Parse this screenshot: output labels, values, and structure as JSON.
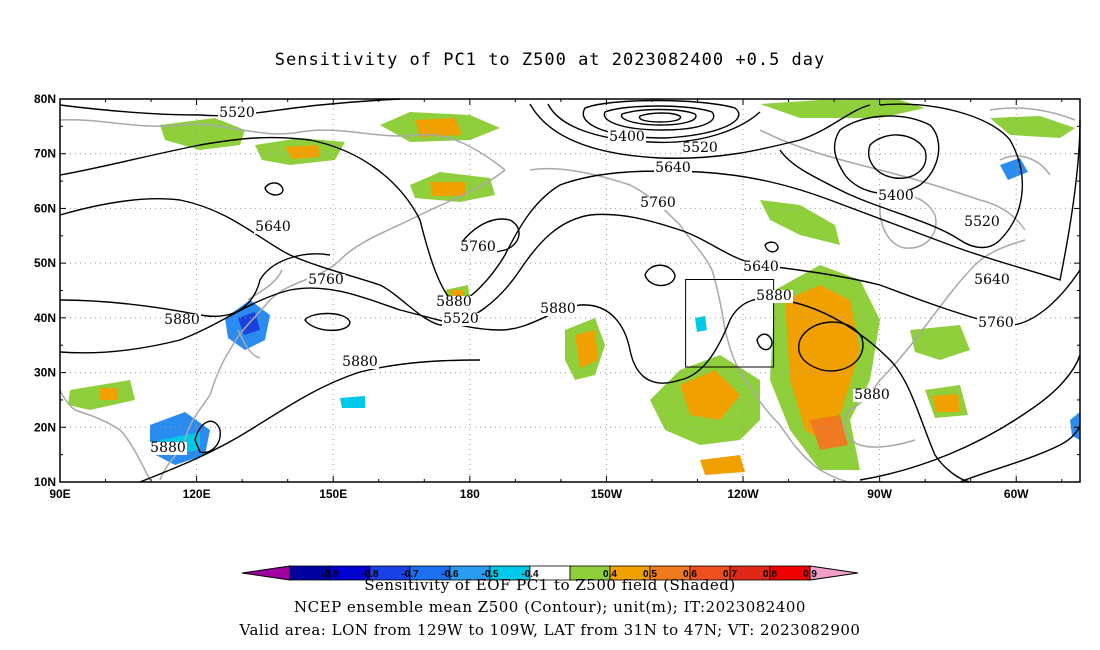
{
  "title": "Sensitivity of PC1 to Z500 at 2023082400 +0.5 day",
  "map": {
    "lon_ticks": [
      "90E",
      "120E",
      "150E",
      "180",
      "150W",
      "120W",
      "90W",
      "60W"
    ],
    "lat_ticks": [
      "10N",
      "20N",
      "30N",
      "40N",
      "50N",
      "60N",
      "70N",
      "80N"
    ],
    "extent": {
      "lon": [
        90,
        314
      ],
      "lat": [
        10,
        80
      ]
    },
    "grid": "dotted",
    "contour_labels": [
      "5520",
      "5400",
      "5520",
      "5640",
      "5760",
      "5400",
      "5520",
      "5640",
      "5760",
      "5880",
      "5520",
      "5640",
      "5760",
      "5880",
      "5880",
      "5640",
      "5760",
      "5880",
      "5880",
      "5880",
      "5880"
    ],
    "valid_area": {
      "lon": [
        -129,
        -109
      ],
      "lat": [
        31,
        47
      ]
    },
    "colors": {
      "contour": "#000000",
      "coast": "#a0a0a0",
      "positive": [
        "#8fcf3c",
        "#f0a000",
        "#f07a20",
        "#e04020"
      ],
      "negative": [
        "#00c8e8",
        "#2a8cf0",
        "#1a40e0",
        "#0000c0"
      ]
    }
  },
  "colorbar": {
    "levels": [
      "-0.9",
      "-0.8",
      "-0.7",
      "-0.6",
      "-0.5",
      "-0.4",
      "0.4",
      "0.5",
      "0.6",
      "0.7",
      "0.8",
      "0.9"
    ],
    "colors": [
      "#a000a0",
      "#0000a0",
      "#0000d0",
      "#1a40e8",
      "#1a70f0",
      "#2a9cf0",
      "#00c8e8",
      "#ffffff",
      "#8fcf3c",
      "#f0a000",
      "#f07a20",
      "#f05020",
      "#e02818",
      "#f00000",
      "#f0a0c8"
    ]
  },
  "caption": "Sensitivity of EOF PC1 to Z500 field (Shaded)",
  "footer": [
    "NCEP ensemble mean Z500 (Contour); unit(m); IT:2023082400",
    "Valid area: LON from 129W to 109W, LAT from 31N to 47N; VT: 2023082900"
  ]
}
